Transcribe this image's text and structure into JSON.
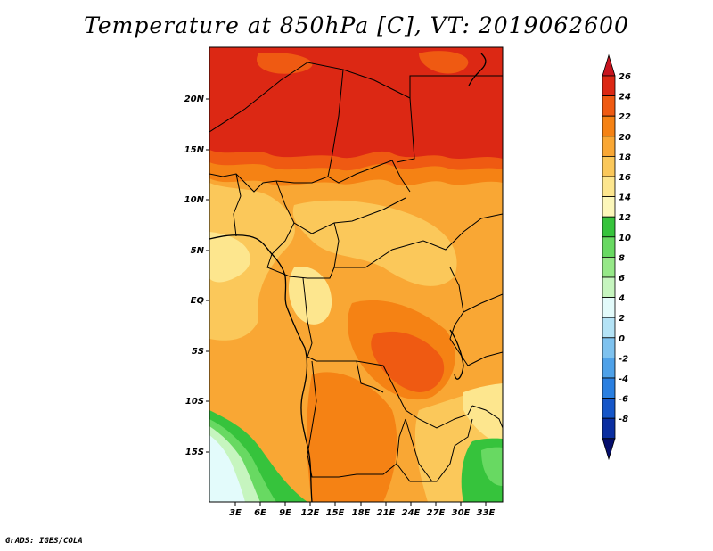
{
  "title": "Temperature at 850hPa [C], VT: 2019062600",
  "footer": "GrADS: IGES/COLA",
  "map": {
    "lat_labels": [
      "20N",
      "15N",
      "10N",
      "5N",
      "EQ",
      "5S",
      "10S",
      "15S"
    ],
    "lon_labels": [
      "3E",
      "6E",
      "9E",
      "12E",
      "15E",
      "18E",
      "21E",
      "24E",
      "27E",
      "30E",
      "33E"
    ]
  },
  "colorbar": {
    "labels": [
      "26",
      "24",
      "22",
      "20",
      "18",
      "16",
      "14",
      "12",
      "10",
      "8",
      "6",
      "4",
      "2",
      "0",
      "-2",
      "-4",
      "-6",
      "-8"
    ],
    "colors": [
      "#c8141e",
      "#dc2814",
      "#ef5a12",
      "#f58214",
      "#f9a734",
      "#fbc85a",
      "#fde68e",
      "#fcf7ba",
      "#36c33c",
      "#68d962",
      "#96e888",
      "#c6f5bf",
      "#e3fbfb",
      "#b4e3f6",
      "#7ec2ef",
      "#4ea1e8",
      "#2a7fe0",
      "#1656c8",
      "#0a2ea0",
      "#050e6c"
    ]
  }
}
